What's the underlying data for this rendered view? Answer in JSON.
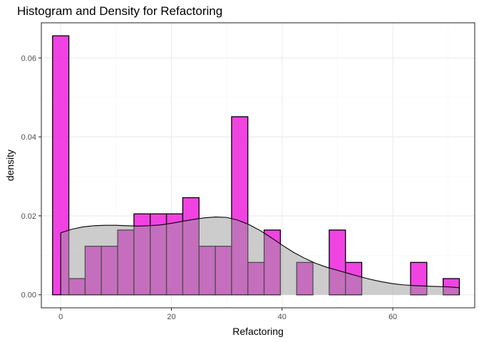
{
  "chart_data": {
    "type": "bar",
    "title": "Histogram and Density for Refactoring",
    "xlabel": "Refactoring",
    "ylabel": "density",
    "xlim": [
      -3.5,
      74.8
    ],
    "ylim": [
      -0.0033,
      0.0689
    ],
    "x_ticks": [
      0,
      20,
      40,
      60
    ],
    "x_tick_labels": [
      "0",
      "20",
      "40",
      "60"
    ],
    "y_ticks": [
      0,
      0.02,
      0.04,
      0.06
    ],
    "y_tick_labels": [
      "0.00",
      "0.02",
      "0.04",
      "0.06"
    ],
    "grid": true,
    "histogram": {
      "bin_width": 2.94,
      "bins_left": [
        -1.47,
        1.47,
        4.41,
        7.35,
        10.29,
        13.23,
        16.17,
        19.11,
        22.05,
        24.99,
        27.93,
        30.87,
        33.81,
        36.75,
        39.69,
        42.63,
        45.57,
        48.51,
        51.45,
        54.39,
        57.33,
        60.27,
        63.21,
        66.15,
        69.09
      ],
      "values": [
        0.0656,
        0.0041,
        0.0123,
        0.0123,
        0.0164,
        0.0205,
        0.0205,
        0.0205,
        0.0246,
        0.0123,
        0.0123,
        0.0451,
        0.0082,
        0.0164,
        0.0,
        0.0082,
        0.0,
        0.0164,
        0.0082,
        0.0,
        0.0,
        0.0,
        0.0082,
        0.0,
        0.0041
      ],
      "fill": "#ee22dd",
      "stroke": "#000000"
    },
    "density": {
      "x": [
        0,
        2,
        4,
        6,
        8,
        10,
        12,
        14,
        16,
        18,
        20,
        22,
        24,
        26,
        28,
        30,
        32,
        34,
        36,
        38,
        40,
        42,
        44,
        46,
        48,
        50,
        52,
        54,
        56,
        58,
        60,
        62,
        64,
        66,
        68,
        70,
        72
      ],
      "y": [
        0.0157,
        0.0166,
        0.0172,
        0.0175,
        0.0176,
        0.0176,
        0.0175,
        0.0174,
        0.0175,
        0.0177,
        0.0181,
        0.0186,
        0.0191,
        0.0195,
        0.0197,
        0.0196,
        0.0189,
        0.0178,
        0.0163,
        0.0145,
        0.0126,
        0.0108,
        0.0093,
        0.008,
        0.007,
        0.0062,
        0.0054,
        0.0046,
        0.0039,
        0.0033,
        0.0028,
        0.0025,
        0.0023,
        0.0022,
        0.0021,
        0.002,
        0.0018
      ],
      "fill": "#999999",
      "fill_opacity": 0.5,
      "stroke": "#000000"
    },
    "colors": {
      "panel_border": "#333333",
      "grid_major": "#ebebeb",
      "grid_minor": "#f5f5f5",
      "tick": "#333333"
    }
  }
}
